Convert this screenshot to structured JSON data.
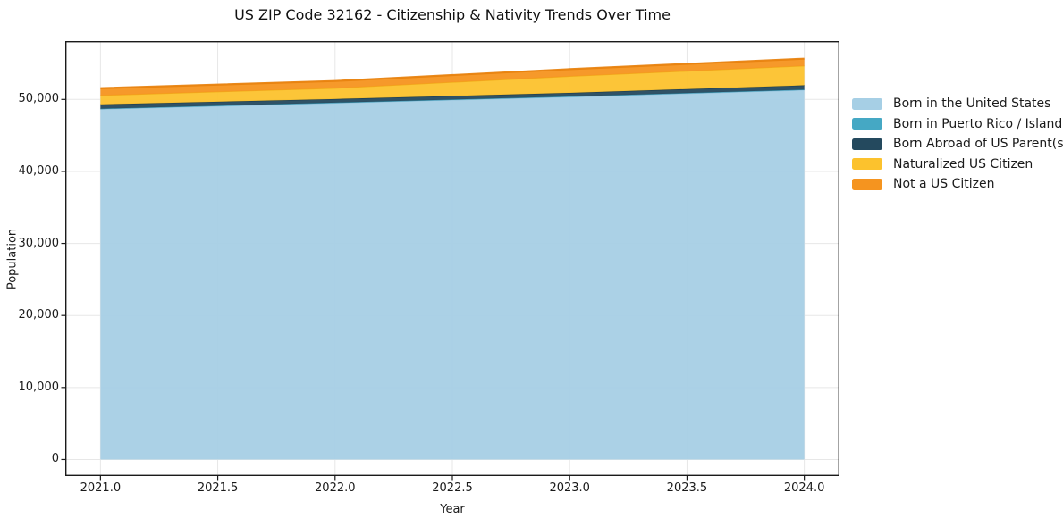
{
  "chart_data": {
    "type": "area",
    "stacked": true,
    "title": "US ZIP Code 32162 - Citizenship & Nativity Trends Over Time",
    "xlabel": "Year",
    "ylabel": "Population",
    "x": [
      2021,
      2022,
      2023,
      2024
    ],
    "series": [
      {
        "name": "Born in the United States",
        "color": "#a6cfe5",
        "edge": "#8cbfda",
        "edge_width": 1.2,
        "values": [
          48650,
          49500,
          50350,
          51300
        ]
      },
      {
        "name": "Born in Puerto Rico / Islands",
        "color": "#45a8c4",
        "edge": "#3b96b0",
        "edge_width": 1.0,
        "values": [
          60,
          60,
          60,
          60
        ]
      },
      {
        "name": "Born Abroad of US Parent(s)",
        "color": "#24495e",
        "edge": "#1c3a4b",
        "edge_width": 1.2,
        "values": [
          600,
          500,
          500,
          600
        ]
      },
      {
        "name": "Naturalized US Citizen",
        "color": "#fcc22d",
        "edge": "#f0ab19",
        "edge_width": 1.2,
        "values": [
          1250,
          1500,
          2300,
          2700
        ]
      },
      {
        "name": "Not a US Citizen",
        "color": "#f5941f",
        "edge": "#e8820e",
        "edge_width": 2.2,
        "values": [
          1000,
          1000,
          1000,
          1000
        ]
      }
    ],
    "xlim": [
      2020.85,
      2024.15
    ],
    "ylim": [
      -2300,
      58100
    ],
    "xticks": {
      "values": [
        2021,
        2021.5,
        2022,
        2022.5,
        2023,
        2023.5,
        2024
      ],
      "labels": [
        "2021.0",
        "2021.5",
        "2022.0",
        "2022.5",
        "2023.0",
        "2023.5",
        "2024.0"
      ]
    },
    "yticks": {
      "values": [
        0,
        10000,
        20000,
        30000,
        40000,
        50000
      ],
      "labels": [
        "0",
        "10,000",
        "20,000",
        "30,000",
        "40,000",
        "50,000"
      ]
    },
    "grid": true,
    "grid_color": "#e7e7e7",
    "frame_color": "#1a1a1a",
    "legend_position": "outside-right"
  }
}
